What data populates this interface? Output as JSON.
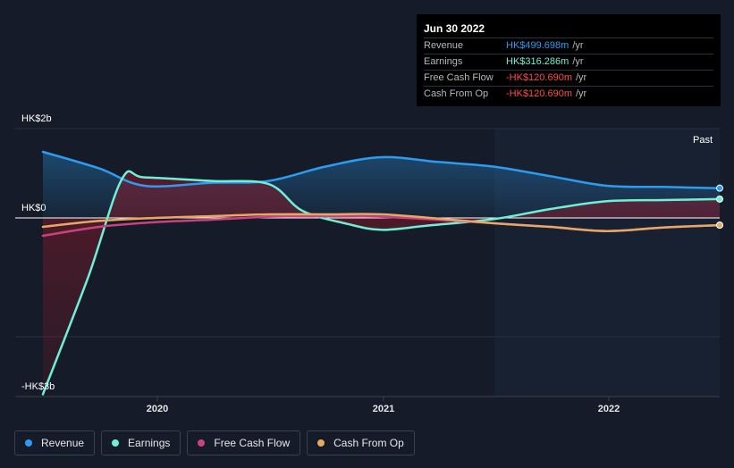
{
  "tooltip": {
    "date": "Jun 30 2022",
    "rows": [
      {
        "label": "Revenue",
        "value": "HK$499.698m",
        "unit": "/yr",
        "color": "#2d9cf0"
      },
      {
        "label": "Earnings",
        "value": "HK$316.286m",
        "unit": "/yr",
        "color": "#6ff0d6"
      },
      {
        "label": "Free Cash Flow",
        "value": "-HK$120.690m",
        "unit": "/yr",
        "color": "#ff4d4d"
      },
      {
        "label": "Cash From Op",
        "value": "-HK$120.690m",
        "unit": "/yr",
        "color": "#ff4d4d"
      }
    ]
  },
  "legend": [
    {
      "label": "Revenue",
      "color": "#2d9cf0"
    },
    {
      "label": "Earnings",
      "color": "#6ff0d6"
    },
    {
      "label": "Free Cash Flow",
      "color": "#c8427f"
    },
    {
      "label": "Cash From Op",
      "color": "#e8a865"
    }
  ],
  "chart_data": {
    "type": "line",
    "past_label": "Past",
    "y_tick_labels": [
      "HK$2b",
      "HK$0",
      "-HK$3b"
    ],
    "x_tick_labels": [
      "2020",
      "2021",
      "2022"
    ],
    "ylim": [
      -3000,
      1500
    ],
    "xlim": [
      2019.5,
      2022.5
    ],
    "series": [
      {
        "name": "Revenue",
        "color": "#2d9cf0",
        "x": [
          2019.5,
          2019.75,
          2019.95,
          2020.25,
          2020.5,
          2020.75,
          2021.0,
          2021.25,
          2021.5,
          2021.75,
          2022.0,
          2022.25,
          2022.5
        ],
        "y": [
          1110,
          830,
          540,
          590,
          620,
          860,
          1020,
          940,
          860,
          700,
          540,
          520,
          500
        ]
      },
      {
        "name": "Earnings",
        "color": "#6ff0d6",
        "x": [
          2019.5,
          2019.7,
          2019.85,
          2019.95,
          2020.25,
          2020.5,
          2020.65,
          2020.85,
          2021.0,
          2021.2,
          2021.5,
          2021.75,
          2022.0,
          2022.25,
          2022.5
        ],
        "y": [
          -2960,
          -1000,
          650,
          680,
          620,
          570,
          120,
          -100,
          -200,
          -130,
          -20,
          150,
          280,
          300,
          316
        ]
      },
      {
        "name": "Free Cash Flow",
        "color": "#c8427f",
        "x": [
          2019.5,
          2019.75,
          2020.0,
          2020.25,
          2020.5,
          2020.75,
          2021.0,
          2021.25,
          2021.5,
          2021.75,
          2022.0,
          2022.25,
          2022.5
        ],
        "y": [
          -300,
          -150,
          -70,
          -30,
          20,
          30,
          20,
          -30,
          -90,
          -150,
          -220,
          -160,
          -121
        ]
      },
      {
        "name": "Cash From Op",
        "color": "#e8a865",
        "x": [
          2019.5,
          2019.75,
          2020.0,
          2020.25,
          2020.5,
          2020.75,
          2021.0,
          2021.25,
          2021.5,
          2021.75,
          2022.0,
          2022.25,
          2022.5
        ],
        "y": [
          -150,
          -50,
          0,
          30,
          60,
          60,
          60,
          -10,
          -90,
          -150,
          -220,
          -160,
          -121
        ]
      }
    ]
  }
}
